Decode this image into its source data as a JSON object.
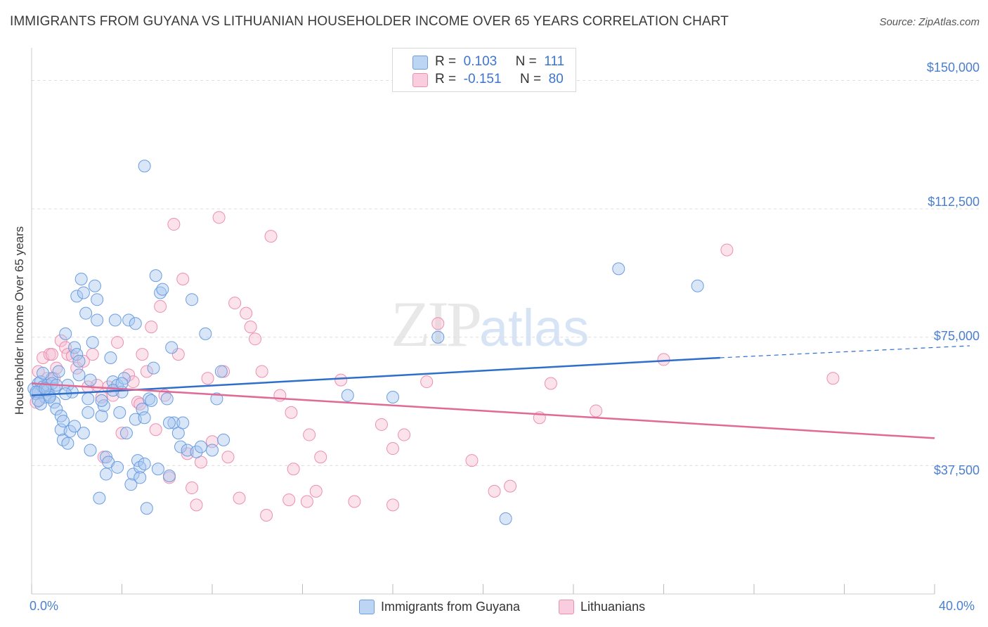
{
  "title": "IMMIGRANTS FROM GUYANA VS LITHUANIAN HOUSEHOLDER INCOME OVER 65 YEARS CORRELATION CHART",
  "source": "Source: ZipAtlas.com",
  "watermark": {
    "zip": "ZIP",
    "atlas": "atlas"
  },
  "legend_top": {
    "rows": [
      {
        "r_label": "R =",
        "r_value": "0.103",
        "n_label": "N =",
        "n_value": "111"
      },
      {
        "r_label": "R =",
        "r_value": "-0.151",
        "n_label": "N =",
        "n_value": "80"
      }
    ]
  },
  "legend_bottom": {
    "series1": "Immigrants from Guyana",
    "series2": "Lithuanians"
  },
  "colors": {
    "blue_fill": "#a9c8f0",
    "blue_stroke": "#6b9de0",
    "blue_line": "#2e6fcc",
    "pink_fill": "#f6bfd2",
    "pink_stroke": "#ec8fb0",
    "pink_line": "#e06a95",
    "tick_text": "#4a7fd0",
    "grid": "#dddddd"
  },
  "chart_data": {
    "type": "scatter",
    "title": "IMMIGRANTS FROM GUYANA VS LITHUANIAN HOUSEHOLDER INCOME OVER 65 YEARS CORRELATION CHART",
    "xlabel": "",
    "ylabel": "Householder Income Over 65 years",
    "xlim": [
      0,
      40
    ],
    "ylim": [
      0,
      157500
    ],
    "x_tick_labels": [
      "0.0%",
      "40.0%"
    ],
    "y_ticks": [
      37500,
      75000,
      112500,
      150000
    ],
    "y_tick_labels": [
      "$37,500",
      "$75,000",
      "$112,500",
      "$150,000"
    ],
    "grid": true,
    "legend_position": "top-center",
    "series": [
      {
        "name": "Immigrants from Guyana",
        "trend": {
          "x": [
            0,
            30.5
          ],
          "y": [
            58000,
            69000
          ],
          "dashed_to": [
            40,
            72500
          ]
        },
        "points": [
          [
            0.1,
            60000
          ],
          [
            0.2,
            58500
          ],
          [
            0.3,
            61500
          ],
          [
            0.3,
            59000
          ],
          [
            0.4,
            62000
          ],
          [
            0.5,
            60500
          ],
          [
            0.6,
            57500
          ],
          [
            0.7,
            59500
          ],
          [
            0.7,
            61000
          ],
          [
            0.8,
            58000
          ],
          [
            0.9,
            63000
          ],
          [
            1.0,
            56000
          ],
          [
            1.0,
            60000
          ],
          [
            1.1,
            54000
          ],
          [
            1.2,
            65000
          ],
          [
            1.3,
            52000
          ],
          [
            1.3,
            48000
          ],
          [
            1.4,
            45000
          ],
          [
            1.5,
            76000
          ],
          [
            1.6,
            61000
          ],
          [
            1.7,
            47500
          ],
          [
            1.8,
            59000
          ],
          [
            1.9,
            72000
          ],
          [
            2.0,
            70000
          ],
          [
            2.0,
            87000
          ],
          [
            2.1,
            68000
          ],
          [
            2.2,
            92000
          ],
          [
            2.3,
            88000
          ],
          [
            2.3,
            47000
          ],
          [
            2.4,
            82000
          ],
          [
            2.5,
            53000
          ],
          [
            2.6,
            42000
          ],
          [
            2.7,
            73500
          ],
          [
            2.8,
            90000
          ],
          [
            2.9,
            86000
          ],
          [
            2.9,
            80000
          ],
          [
            3.0,
            28000
          ],
          [
            3.1,
            52000
          ],
          [
            3.2,
            55000
          ],
          [
            3.3,
            40000
          ],
          [
            3.4,
            38500
          ],
          [
            3.5,
            69000
          ],
          [
            3.6,
            62000
          ],
          [
            3.7,
            80000
          ],
          [
            3.8,
            61000
          ],
          [
            3.9,
            53000
          ],
          [
            4.0,
            59000
          ],
          [
            4.1,
            63000
          ],
          [
            4.2,
            47000
          ],
          [
            4.3,
            80000
          ],
          [
            4.4,
            32000
          ],
          [
            4.5,
            35000
          ],
          [
            4.6,
            79000
          ],
          [
            4.7,
            39000
          ],
          [
            4.8,
            37000
          ],
          [
            4.9,
            54000
          ],
          [
            5.0,
            38000
          ],
          [
            5.1,
            25000
          ],
          [
            5.2,
            57000
          ],
          [
            5.3,
            56500
          ],
          [
            5.4,
            66000
          ],
          [
            5.5,
            93000
          ],
          [
            5.6,
            36500
          ],
          [
            5.7,
            88000
          ],
          [
            5.8,
            89000
          ],
          [
            6.0,
            57000
          ],
          [
            6.1,
            34500
          ],
          [
            6.2,
            72000
          ],
          [
            6.3,
            50000
          ],
          [
            6.5,
            47000
          ],
          [
            6.6,
            43000
          ],
          [
            6.7,
            50000
          ],
          [
            6.9,
            42000
          ],
          [
            7.1,
            86000
          ],
          [
            7.3,
            41500
          ],
          [
            7.5,
            43000
          ],
          [
            7.7,
            76000
          ],
          [
            8.0,
            42000
          ],
          [
            8.2,
            57000
          ],
          [
            8.4,
            65000
          ],
          [
            8.5,
            45000
          ],
          [
            0.4,
            55500
          ],
          [
            0.9,
            61500
          ],
          [
            1.4,
            50500
          ],
          [
            1.9,
            49000
          ],
          [
            2.5,
            57000
          ],
          [
            3.1,
            56500
          ],
          [
            3.6,
            59500
          ],
          [
            4.6,
            51000
          ],
          [
            0.2,
            59000
          ],
          [
            0.5,
            64500
          ],
          [
            0.8,
            57500
          ],
          [
            1.1,
            61000
          ],
          [
            1.6,
            44000
          ],
          [
            2.1,
            64000
          ],
          [
            2.6,
            62500
          ],
          [
            3.3,
            35000
          ],
          [
            3.8,
            37000
          ],
          [
            4.8,
            34000
          ],
          [
            6.1,
            50000
          ],
          [
            0.6,
            60000
          ],
          [
            1.5,
            58500
          ],
          [
            4.0,
            61500
          ],
          [
            5.0,
            51500
          ],
          [
            0.3,
            56500
          ],
          [
            14.0,
            58000
          ],
          [
            16.0,
            57500
          ],
          [
            18.0,
            75000
          ],
          [
            21.0,
            22000
          ],
          [
            26.0,
            95000
          ],
          [
            29.5,
            90000
          ],
          [
            5.0,
            125000
          ]
        ]
      },
      {
        "name": "Lithuanians",
        "trend": {
          "x": [
            0,
            40
          ],
          "y": [
            61500,
            45500
          ]
        },
        "points": [
          [
            0.2,
            56000
          ],
          [
            0.3,
            65000
          ],
          [
            0.4,
            59000
          ],
          [
            0.5,
            69000
          ],
          [
            0.7,
            63000
          ],
          [
            0.8,
            70000
          ],
          [
            1.0,
            63000
          ],
          [
            1.1,
            66000
          ],
          [
            1.3,
            74000
          ],
          [
            1.5,
            72000
          ],
          [
            1.6,
            70000
          ],
          [
            1.8,
            69500
          ],
          [
            2.0,
            66000
          ],
          [
            2.3,
            68000
          ],
          [
            2.5,
            60500
          ],
          [
            2.7,
            70000
          ],
          [
            2.9,
            61000
          ],
          [
            3.1,
            57500
          ],
          [
            3.4,
            60500
          ],
          [
            3.6,
            58000
          ],
          [
            3.8,
            73500
          ],
          [
            4.0,
            47000
          ],
          [
            4.3,
            64000
          ],
          [
            4.5,
            62000
          ],
          [
            4.7,
            56000
          ],
          [
            4.9,
            70000
          ],
          [
            5.1,
            65000
          ],
          [
            5.3,
            78000
          ],
          [
            5.5,
            48000
          ],
          [
            5.7,
            84000
          ],
          [
            5.9,
            58000
          ],
          [
            6.1,
            34000
          ],
          [
            6.3,
            108000
          ],
          [
            6.5,
            70000
          ],
          [
            6.7,
            92000
          ],
          [
            6.9,
            41000
          ],
          [
            7.1,
            31000
          ],
          [
            7.3,
            26000
          ],
          [
            7.5,
            38500
          ],
          [
            7.8,
            63000
          ],
          [
            8.0,
            44500
          ],
          [
            8.3,
            110000
          ],
          [
            8.5,
            65000
          ],
          [
            8.7,
            40000
          ],
          [
            9.0,
            85000
          ],
          [
            9.2,
            28000
          ],
          [
            9.5,
            82000
          ],
          [
            9.7,
            78000
          ],
          [
            9.9,
            74500
          ],
          [
            10.2,
            65000
          ],
          [
            10.4,
            23000
          ],
          [
            10.6,
            104500
          ],
          [
            11.0,
            58000
          ],
          [
            11.4,
            27500
          ],
          [
            11.6,
            36500
          ],
          [
            12.3,
            46500
          ],
          [
            12.6,
            30000
          ],
          [
            12.8,
            40000
          ],
          [
            13.7,
            62500
          ],
          [
            14.3,
            27000
          ],
          [
            15.5,
            49500
          ],
          [
            16.0,
            42500
          ],
          [
            16.5,
            46500
          ],
          [
            17.5,
            62000
          ],
          [
            18.0,
            79000
          ],
          [
            19.5,
            39000
          ],
          [
            20.5,
            30000
          ],
          [
            21.2,
            31500
          ],
          [
            22.5,
            51500
          ],
          [
            23.0,
            61500
          ],
          [
            25.0,
            53500
          ],
          [
            28.0,
            68500
          ],
          [
            30.8,
            100500
          ],
          [
            35.5,
            63000
          ],
          [
            0.9,
            70000
          ],
          [
            3.2,
            40000
          ],
          [
            4.8,
            55500
          ],
          [
            11.5,
            53000
          ],
          [
            12.2,
            27000
          ],
          [
            16.0,
            26000
          ]
        ]
      }
    ]
  },
  "axes": {
    "y_tick_labels": [
      "$150,000",
      "$112,500",
      "$75,000",
      "$37,500"
    ],
    "x_left_label": "0.0%",
    "x_right_label": "40.0%"
  }
}
